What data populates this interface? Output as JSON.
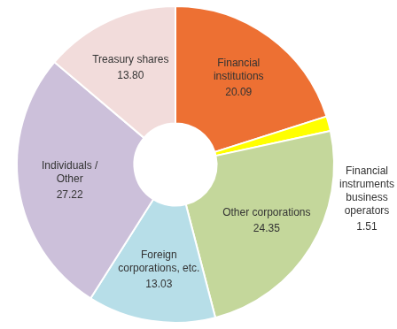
{
  "chart_data": {
    "type": "doughnut",
    "categories": [
      "Financial institutions",
      "Financial instruments business operators",
      "Other corporations",
      "Foreign corporations, etc.",
      "Individuals / Other",
      "Treasury shares"
    ],
    "values": [
      20.09,
      1.51,
      24.35,
      13.03,
      27.22,
      13.8
    ],
    "value_labels": [
      "20.09",
      "1.51",
      "24.35",
      "13.03",
      "27.22",
      "13.80"
    ],
    "colors": [
      "#ed7033",
      "#ffff00",
      "#c4d79b",
      "#b7dee8",
      "#ccc0da",
      "#f2dcdb"
    ],
    "data_labels": true
  }
}
